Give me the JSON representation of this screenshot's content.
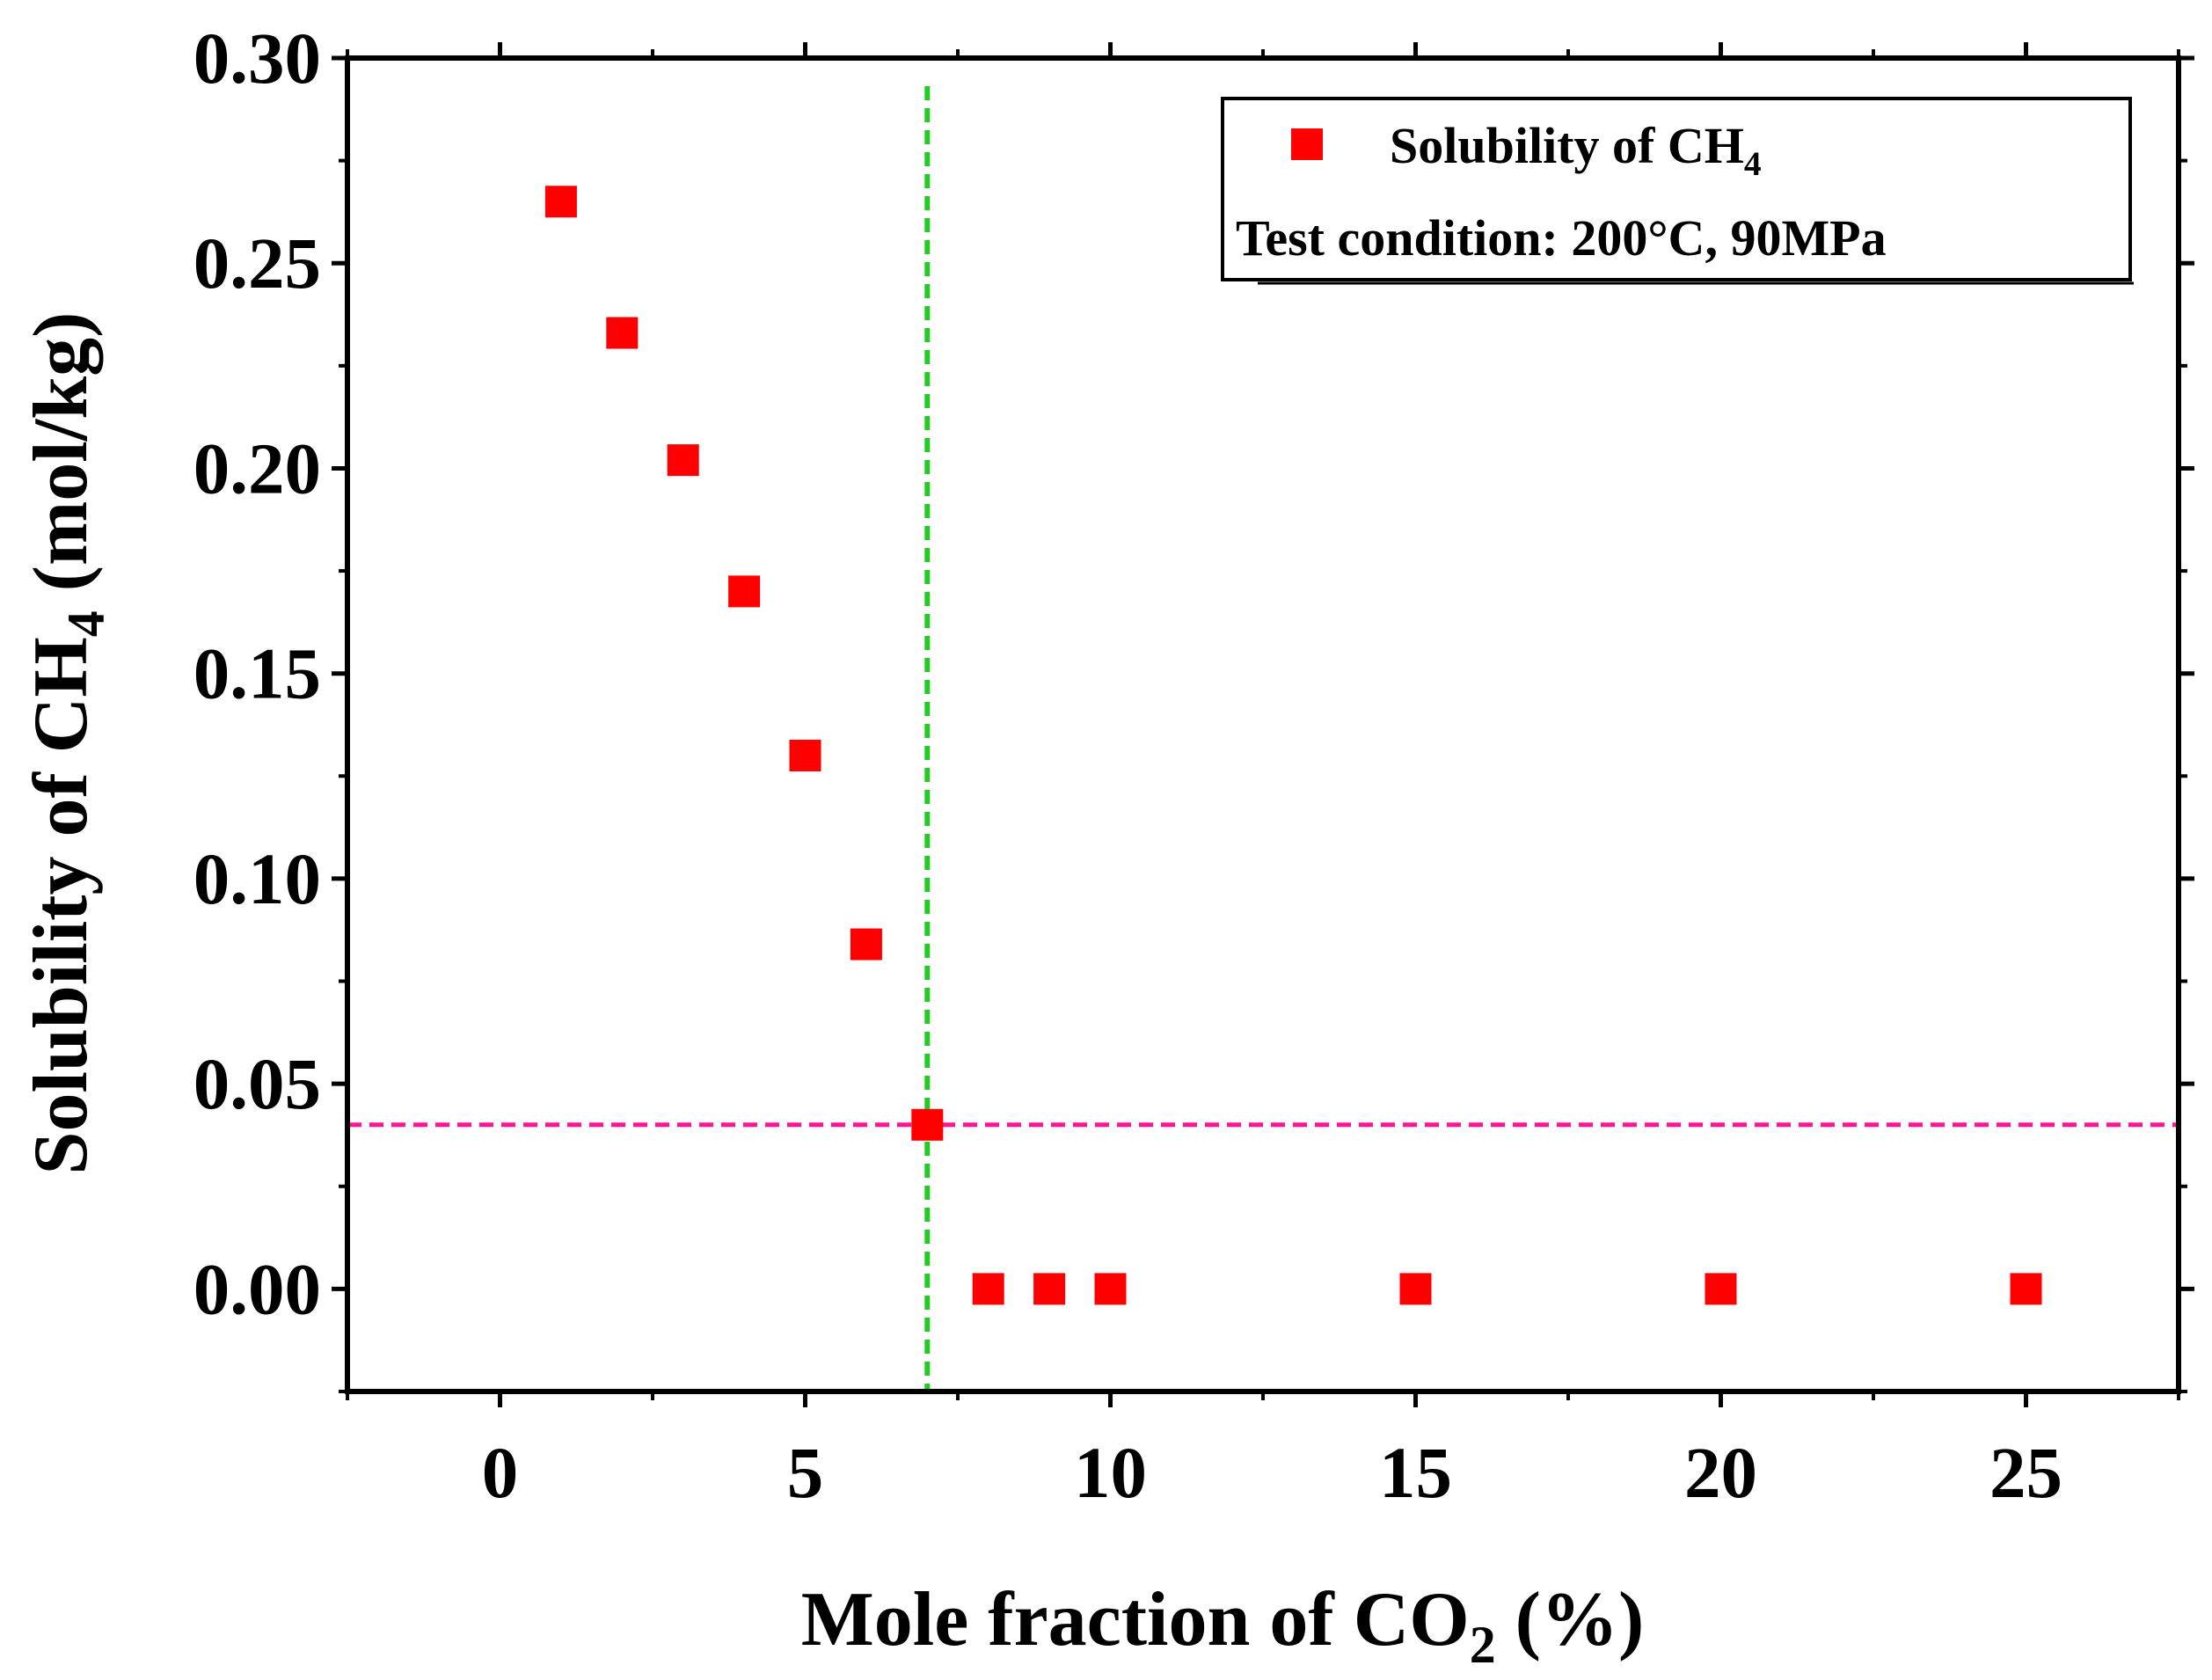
{
  "chart_data": {
    "type": "scatter",
    "xlabel": {
      "text": "Mole fraction of CO",
      "sub": "2",
      "suffix": " (%)"
    },
    "ylabel": {
      "text": "Solubility of CH",
      "sub": "4",
      "suffix": " (mol/kg)"
    },
    "xlim": [
      -2.5,
      27.5
    ],
    "ylim": [
      -0.025,
      0.3
    ],
    "x_ticks": [
      0,
      5,
      10,
      15,
      20,
      25
    ],
    "x_tick_labels": [
      "0",
      "5",
      "10",
      "15",
      "20",
      "25"
    ],
    "x_minor_ticks": [
      -2.5,
      2.5,
      7.5,
      12.5,
      17.5,
      22.5,
      27.5
    ],
    "y_ticks": [
      0.0,
      0.05,
      0.1,
      0.15,
      0.2,
      0.25,
      0.3
    ],
    "y_tick_labels": [
      "0.00",
      "0.05",
      "0.10",
      "0.15",
      "0.20",
      "0.25",
      "0.30"
    ],
    "y_minor_ticks": [
      -0.025,
      0.025,
      0.075,
      0.125,
      0.175,
      0.225,
      0.275
    ],
    "series": [
      {
        "name": "Solubility of CH4",
        "marker": "square",
        "color": "#ff0000",
        "x": [
          1,
          2,
          3,
          4,
          5,
          6,
          7,
          8,
          9,
          10,
          15,
          20,
          25
        ],
        "y": [
          0.265,
          0.233,
          0.202,
          0.17,
          0.13,
          0.084,
          0.04,
          0.0,
          0.0,
          0.0,
          0.0,
          0.0,
          0.0
        ]
      }
    ],
    "reference_lines": [
      {
        "orientation": "vertical",
        "value": 7,
        "color": "#22cc22",
        "style": "dashed"
      },
      {
        "orientation": "horizontal",
        "value": 0.04,
        "color": "#ff1493",
        "style": "dashed"
      }
    ],
    "legend": {
      "placement": "top-right",
      "entry": {
        "text": "Solubility of CH",
        "sub": "4"
      },
      "note": "Test condition: 200°C, 90MPa"
    }
  }
}
